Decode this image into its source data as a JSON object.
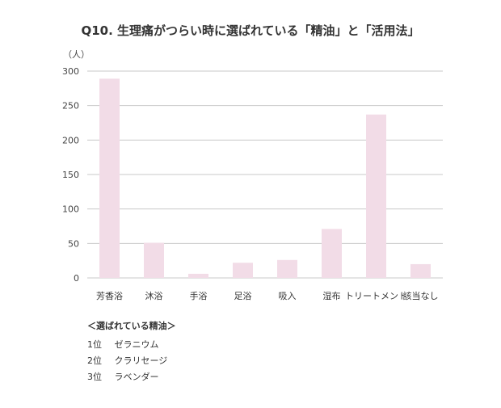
{
  "chart_data": {
    "type": "bar",
    "title": "Q10. 生理痛がつらい時に選ばれている「精油」と「活用法」",
    "ylabel": "（人）",
    "xlabel": "",
    "categories": [
      "芳香浴",
      "沐浴",
      "手浴",
      "足浴",
      "吸入",
      "湿布",
      "トリートメント",
      "該当なし"
    ],
    "values": [
      289,
      51,
      6,
      22,
      26,
      71,
      237,
      20
    ],
    "ylim": [
      0,
      300
    ],
    "yticks": [
      0,
      50,
      100,
      150,
      200,
      250,
      300
    ],
    "grid": true,
    "bar_color": "#f2dce7",
    "grid_color": "#c8c8c8"
  },
  "notes": {
    "heading": "＜選ばれている精油＞",
    "items": [
      {
        "rank": "1位",
        "name": "ゼラニウム"
      },
      {
        "rank": "2位",
        "name": "クラリセージ"
      },
      {
        "rank": "3位",
        "name": "ラベンダー"
      }
    ]
  }
}
